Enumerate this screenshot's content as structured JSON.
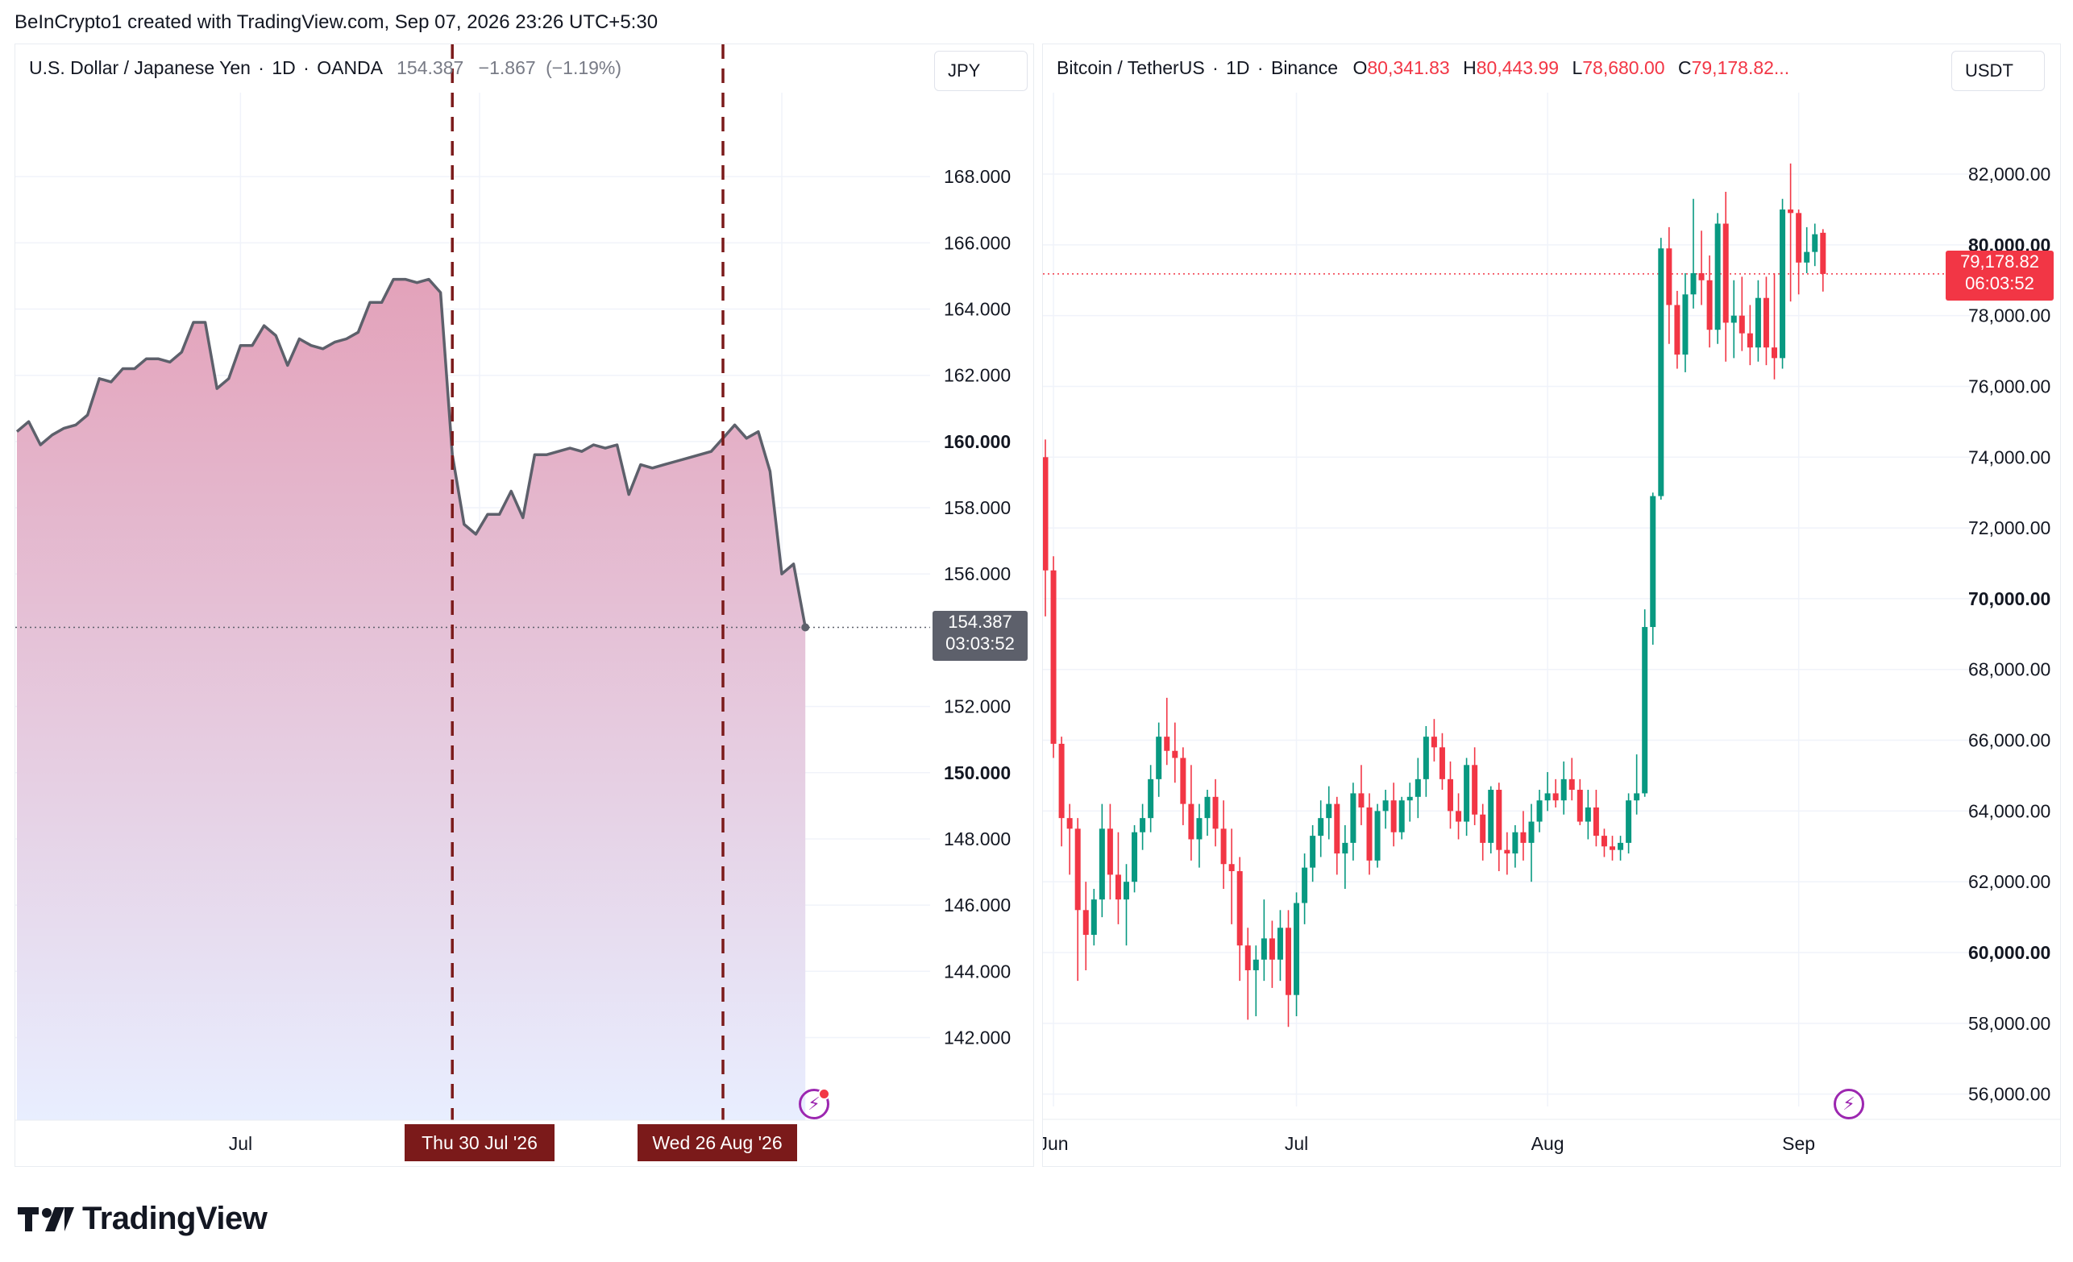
{
  "header": {
    "caption": "BeInCrypto1 created with TradingView.com, Sep 07, 2026 23:26 UTC+5:30"
  },
  "brand": {
    "name": "TradingView",
    "icon": "tradingview-logo-icon"
  },
  "colors": {
    "up": "#089981",
    "down": "#f23645",
    "line": "#5d606b",
    "area_top": "#e3a2ba",
    "area_bottom": "#e8eeff",
    "marker": "#7b1a1a",
    "bolt": "#9c27b0"
  },
  "chart_data": [
    {
      "type": "area",
      "legend": {
        "symbol": "U.S. Dollar / Japanese Yen",
        "interval": "1D",
        "exchange": "OANDA",
        "last": "154.387",
        "change": "−1.867",
        "change_pct": "(−1.19%)"
      },
      "currency": "JPY",
      "ylim": [
        140.6,
        170.0
      ],
      "y_ticks": [
        "142.000",
        "144.000",
        "146.000",
        "148.000",
        "150.000",
        "152.000",
        "156.000",
        "158.000",
        "160.000",
        "162.000",
        "164.000",
        "166.000",
        "168.000"
      ],
      "y_ticks_bold": [
        "150.000",
        "160.000"
      ],
      "x_axis_label": "Jul",
      "x_axis_label_index": 19,
      "values": [
        160.3,
        160.6,
        159.9,
        160.2,
        160.4,
        160.5,
        160.8,
        161.9,
        161.8,
        162.2,
        162.2,
        162.5,
        162.5,
        162.4,
        162.7,
        163.6,
        163.6,
        161.6,
        161.9,
        162.9,
        162.9,
        163.5,
        163.2,
        162.3,
        163.1,
        162.9,
        162.8,
        163.0,
        163.1,
        163.3,
        164.2,
        164.2,
        164.9,
        164.9,
        164.8,
        164.9,
        164.5,
        159.6,
        157.5,
        157.2,
        157.8,
        157.8,
        158.5,
        157.7,
        159.6,
        159.6,
        159.7,
        159.8,
        159.7,
        159.9,
        159.8,
        159.9,
        158.4,
        159.3,
        159.2,
        159.3,
        159.4,
        159.5,
        159.6,
        159.7,
        160.1,
        160.5,
        160.1,
        160.3,
        159.1,
        156.0,
        156.3,
        154.387
      ],
      "current_price": "154.387",
      "countdown": "03:03:52",
      "markers": [
        {
          "label": "Thu 30 Jul '26",
          "index": 37
        },
        {
          "label": "Wed 26 Aug '26",
          "index": 60
        }
      ]
    },
    {
      "type": "candlestick",
      "legend": {
        "symbol": "Bitcoin / TetherUS",
        "interval": "1D",
        "exchange": "Binance",
        "o_key": "O",
        "o_val": "80,341.83",
        "h_key": "H",
        "h_val": "80,443.99",
        "l_key": "L",
        "l_val": "78,680.00",
        "c_key": "C",
        "c_val": "79,178.82..."
      },
      "currency": "USDT",
      "ylim": [
        55650,
        83800
      ],
      "y_ticks": [
        "56,000.00",
        "58,000.00",
        "60,000.00",
        "62,000.00",
        "64,000.00",
        "66,000.00",
        "68,000.00",
        "70,000.00",
        "72,000.00",
        "74,000.00",
        "76,000.00",
        "78,000.00",
        "80,000.00",
        "82,000.00"
      ],
      "y_ticks_bold": [
        "60,000.00",
        "70,000.00",
        "80,000.00"
      ],
      "x_axis_labels": [
        {
          "label": "Jun",
          "index": 1
        },
        {
          "label": "Jul",
          "index": 31
        },
        {
          "label": "Aug",
          "index": 62
        },
        {
          "label": "Sep",
          "index": 93
        }
      ],
      "candles": [
        [
          74000,
          74500,
          69500,
          70800
        ],
        [
          70800,
          71200,
          65500,
          65900
        ],
        [
          65900,
          66100,
          63000,
          63800
        ],
        [
          63800,
          64200,
          62200,
          63500
        ],
        [
          63500,
          63800,
          59200,
          61200
        ],
        [
          61200,
          62000,
          59500,
          60500
        ],
        [
          60500,
          61800,
          60200,
          61500
        ],
        [
          61500,
          64200,
          61000,
          63500
        ],
        [
          63500,
          64200,
          61500,
          62200
        ],
        [
          62200,
          63400,
          60800,
          61500
        ],
        [
          61500,
          62500,
          60200,
          62000
        ],
        [
          62000,
          63600,
          61700,
          63400
        ],
        [
          63400,
          64200,
          62900,
          63800
        ],
        [
          63800,
          65300,
          63400,
          64900
        ],
        [
          64900,
          66500,
          64400,
          66100
        ],
        [
          66100,
          67200,
          65300,
          65700
        ],
        [
          65700,
          66500,
          64800,
          65500
        ],
        [
          65500,
          65800,
          63600,
          64200
        ],
        [
          64200,
          65300,
          62600,
          63200
        ],
        [
          63200,
          64200,
          62400,
          63800
        ],
        [
          63800,
          64600,
          63300,
          64400
        ],
        [
          64400,
          64900,
          63000,
          63500
        ],
        [
          63500,
          64300,
          61800,
          62500
        ],
        [
          62500,
          63500,
          60800,
          62300
        ],
        [
          62300,
          62700,
          59200,
          60200
        ],
        [
          60200,
          60700,
          58100,
          59500
        ],
        [
          59500,
          60200,
          58200,
          59800
        ],
        [
          59800,
          61500,
          59200,
          60400
        ],
        [
          60400,
          60900,
          59000,
          59800
        ],
        [
          59800,
          61200,
          59200,
          60700
        ],
        [
          60700,
          61200,
          57900,
          58800
        ],
        [
          58800,
          61700,
          58200,
          61400
        ],
        [
          61400,
          62800,
          60800,
          62400
        ],
        [
          62400,
          63600,
          62000,
          63300
        ],
        [
          63300,
          64300,
          62700,
          63800
        ],
        [
          63800,
          64700,
          63200,
          64200
        ],
        [
          64200,
          64400,
          62200,
          62800
        ],
        [
          62800,
          63600,
          61800,
          63100
        ],
        [
          63100,
          64800,
          62600,
          64500
        ],
        [
          64500,
          65300,
          63600,
          64100
        ],
        [
          64100,
          64500,
          62200,
          62600
        ],
        [
          62600,
          64200,
          62400,
          64000
        ],
        [
          64000,
          64600,
          63500,
          64300
        ],
        [
          64300,
          64800,
          63000,
          63400
        ],
        [
          63400,
          64400,
          63200,
          64300
        ],
        [
          64300,
          64800,
          63700,
          64400
        ],
        [
          64400,
          65500,
          63800,
          64900
        ],
        [
          64900,
          66400,
          64400,
          66100
        ],
        [
          66100,
          66600,
          65400,
          65800
        ],
        [
          65800,
          66200,
          64600,
          64900
        ],
        [
          64900,
          65400,
          63500,
          64000
        ],
        [
          64000,
          64500,
          63200,
          63700
        ],
        [
          63700,
          65500,
          63300,
          65300
        ],
        [
          65300,
          65800,
          63600,
          63900
        ],
        [
          63900,
          64200,
          62600,
          63100
        ],
        [
          63100,
          64700,
          62800,
          64600
        ],
        [
          64600,
          64800,
          62300,
          62900
        ],
        [
          62900,
          63400,
          62200,
          62800
        ],
        [
          62800,
          63600,
          62400,
          63400
        ],
        [
          63400,
          64000,
          62600,
          63100
        ],
        [
          63100,
          64200,
          62000,
          63700
        ],
        [
          63700,
          64600,
          63400,
          64300
        ],
        [
          64300,
          65100,
          64000,
          64500
        ],
        [
          64500,
          64900,
          64100,
          64300
        ],
        [
          64300,
          65400,
          63900,
          64900
        ],
        [
          64900,
          65500,
          64300,
          64600
        ],
        [
          64600,
          64900,
          63600,
          63700
        ],
        [
          63700,
          64600,
          63200,
          64100
        ],
        [
          64100,
          64600,
          63000,
          63300
        ],
        [
          63300,
          63500,
          62700,
          63000
        ],
        [
          63000,
          63300,
          62600,
          62900
        ],
        [
          62900,
          63300,
          62600,
          63100
        ],
        [
          63100,
          64500,
          62800,
          64300
        ],
        [
          64300,
          65600,
          63900,
          64500
        ],
        [
          64500,
          69700,
          64400,
          69200
        ],
        [
          69200,
          73000,
          68700,
          72900
        ],
        [
          72900,
          80200,
          72800,
          79900
        ],
        [
          79900,
          80500,
          77200,
          78300
        ],
        [
          78300,
          78700,
          76500,
          76900
        ],
        [
          76900,
          79200,
          76400,
          78600
        ],
        [
          78600,
          81300,
          78200,
          79200
        ],
        [
          79200,
          80400,
          78300,
          79000
        ],
        [
          79000,
          79700,
          77100,
          77600
        ],
        [
          77600,
          80900,
          77200,
          80600
        ],
        [
          80600,
          81500,
          76700,
          77800
        ],
        [
          77800,
          79000,
          76800,
          78000
        ],
        [
          78000,
          79100,
          77000,
          77500
        ],
        [
          77500,
          78300,
          76600,
          77100
        ],
        [
          77100,
          79000,
          76700,
          78500
        ],
        [
          78500,
          79100,
          76600,
          77100
        ],
        [
          77100,
          79200,
          76200,
          76800
        ],
        [
          76800,
          81300,
          76500,
          81000
        ],
        [
          81000,
          82300,
          78400,
          80900
        ],
        [
          80900,
          81000,
          78600,
          79500
        ],
        [
          79500,
          80500,
          79200,
          79800
        ],
        [
          79800,
          80600,
          79400,
          80300
        ],
        [
          80341.83,
          80443.99,
          78680.0,
          79178.82
        ]
      ],
      "current_price": "79,178.82",
      "countdown": "06:03:52"
    }
  ]
}
